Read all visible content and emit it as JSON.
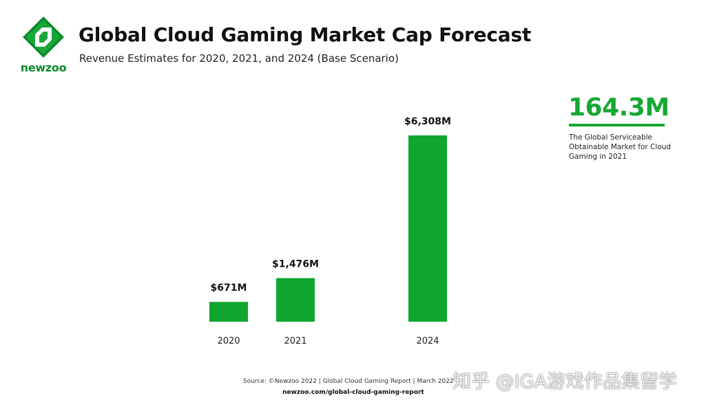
{
  "header": {
    "brand": "newzoo",
    "title": "Global Cloud Gaming Market Cap Forecast",
    "subtitle": "Revenue Estimates for 2020, 2021, and 2024 (Base Scenario)"
  },
  "chart_data": {
    "type": "bar",
    "title": "Global Cloud Gaming Market Cap Forecast",
    "subtitle": "Revenue Estimates for 2020, 2021, and 2024 (Base Scenario)",
    "categories": [
      "2020",
      "2021",
      "2024"
    ],
    "values": [
      671,
      1476,
      6308
    ],
    "data_labels": [
      "$671M",
      "$1,476M",
      "$6,308M"
    ],
    "unit": "M USD",
    "xlabel": "",
    "ylabel": "",
    "ylim": [
      0,
      6308
    ],
    "grid": false,
    "bar_color": "#0fa52f"
  },
  "kpi": {
    "value": "164.3M",
    "description": "The Global Serviceable Obtainable Market for Cloud Gaming in 2021",
    "color": "#16a832"
  },
  "footer": {
    "source": "Source: ©Newzoo 2022 | Global Cloud Gaming Report | March 2022",
    "url": "newzoo.com/global-cloud-gaming-report"
  },
  "watermark": "知乎 @IGA游戏作品集留学"
}
